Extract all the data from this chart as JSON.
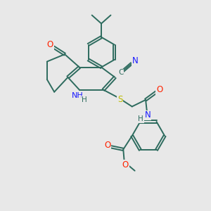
{
  "background_color": "#e8e8e8",
  "line_color": "#2d6b5e",
  "bond_width": 1.4,
  "figsize": [
    3.0,
    3.0
  ],
  "dpi": 100,
  "N_color": "#1a1aff",
  "O_color": "#ff2200",
  "S_color": "#bbbb00",
  "xlim": [
    0,
    10
  ],
  "ylim": [
    0,
    10
  ]
}
